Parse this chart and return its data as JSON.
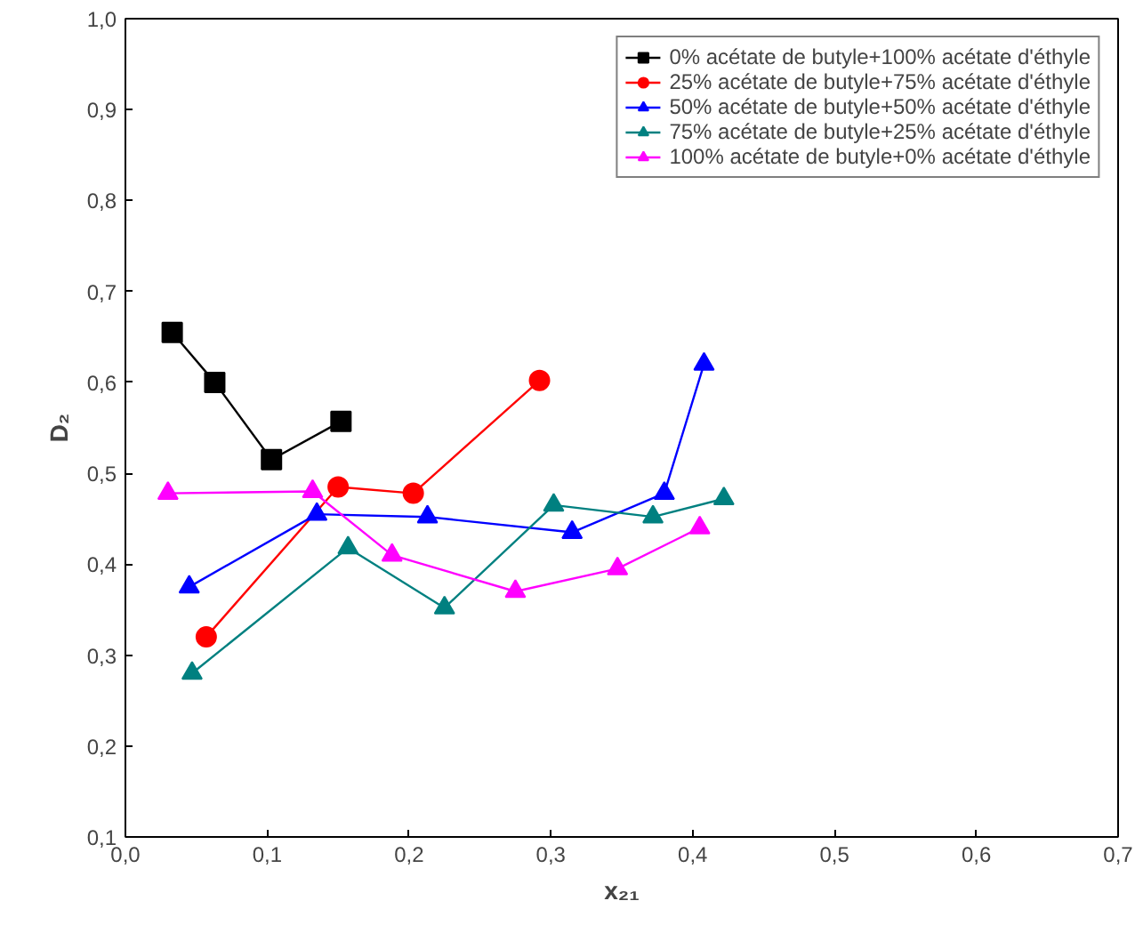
{
  "chart_data": {
    "type": "line",
    "xlabel": "x₂₁",
    "ylabel": "D₂",
    "xlim": [
      0,
      0.7
    ],
    "ylim": [
      0.1,
      1.0
    ],
    "xticks": [
      {
        "value": 0,
        "label": "0,0"
      },
      {
        "value": 0.1,
        "label": "0,1"
      },
      {
        "value": 0.2,
        "label": "0,2"
      },
      {
        "value": 0.3,
        "label": "0,3"
      },
      {
        "value": 0.4,
        "label": "0,4"
      },
      {
        "value": 0.5,
        "label": "0,5"
      },
      {
        "value": 0.6,
        "label": "0,6"
      },
      {
        "value": 0.7,
        "label": "0,7"
      }
    ],
    "yticks": [
      {
        "value": 0.1,
        "label": "0,1"
      },
      {
        "value": 0.2,
        "label": "0,2"
      },
      {
        "value": 0.3,
        "label": "0,3"
      },
      {
        "value": 0.4,
        "label": "0,4"
      },
      {
        "value": 0.5,
        "label": "0,5"
      },
      {
        "value": 0.6,
        "label": "0,6"
      },
      {
        "value": 0.7,
        "label": "0,7"
      },
      {
        "value": 0.8,
        "label": "0,8"
      },
      {
        "value": 0.9,
        "label": "0,9"
      },
      {
        "value": 1.0,
        "label": "1,0"
      }
    ],
    "grid": false,
    "legend": "top right",
    "line_style": "solid",
    "series": [
      {
        "name": "0% acétate de butyle+100% acétate d'éthyle",
        "color": "#000000",
        "marker": "square",
        "x": [
          0.033,
          0.063,
          0.103,
          0.152
        ],
        "values": [
          0.655,
          0.6,
          0.515,
          0.557
        ]
      },
      {
        "name": "25% acétate de butyle+75% acétate d'éthyle",
        "color": "#ff0000",
        "marker": "circle",
        "x": [
          0.057,
          0.15,
          0.203,
          0.292
        ],
        "values": [
          0.32,
          0.485,
          0.478,
          0.602
        ]
      },
      {
        "name": "50% acétate de butyle+50% acétate d'éthyle",
        "color": "#0000ff",
        "marker": "triangle",
        "x": [
          0.045,
          0.135,
          0.213,
          0.315,
          0.38,
          0.408
        ],
        "values": [
          0.375,
          0.455,
          0.452,
          0.435,
          0.478,
          0.62
        ]
      },
      {
        "name": "75% acétate de butyle+25% acétate d'éthyle",
        "color": "#008080",
        "marker": "triangle",
        "x": [
          0.047,
          0.157,
          0.225,
          0.302,
          0.372,
          0.422
        ],
        "values": [
          0.28,
          0.418,
          0.352,
          0.465,
          0.452,
          0.472
        ]
      },
      {
        "name": "100% acétate de butyle+0% acétate d'éthyle",
        "color": "#ff00ff",
        "marker": "triangle",
        "x": [
          0.03,
          0.132,
          0.188,
          0.275,
          0.347,
          0.405
        ],
        "values": [
          0.478,
          0.48,
          0.41,
          0.37,
          0.395,
          0.44
        ]
      }
    ]
  }
}
